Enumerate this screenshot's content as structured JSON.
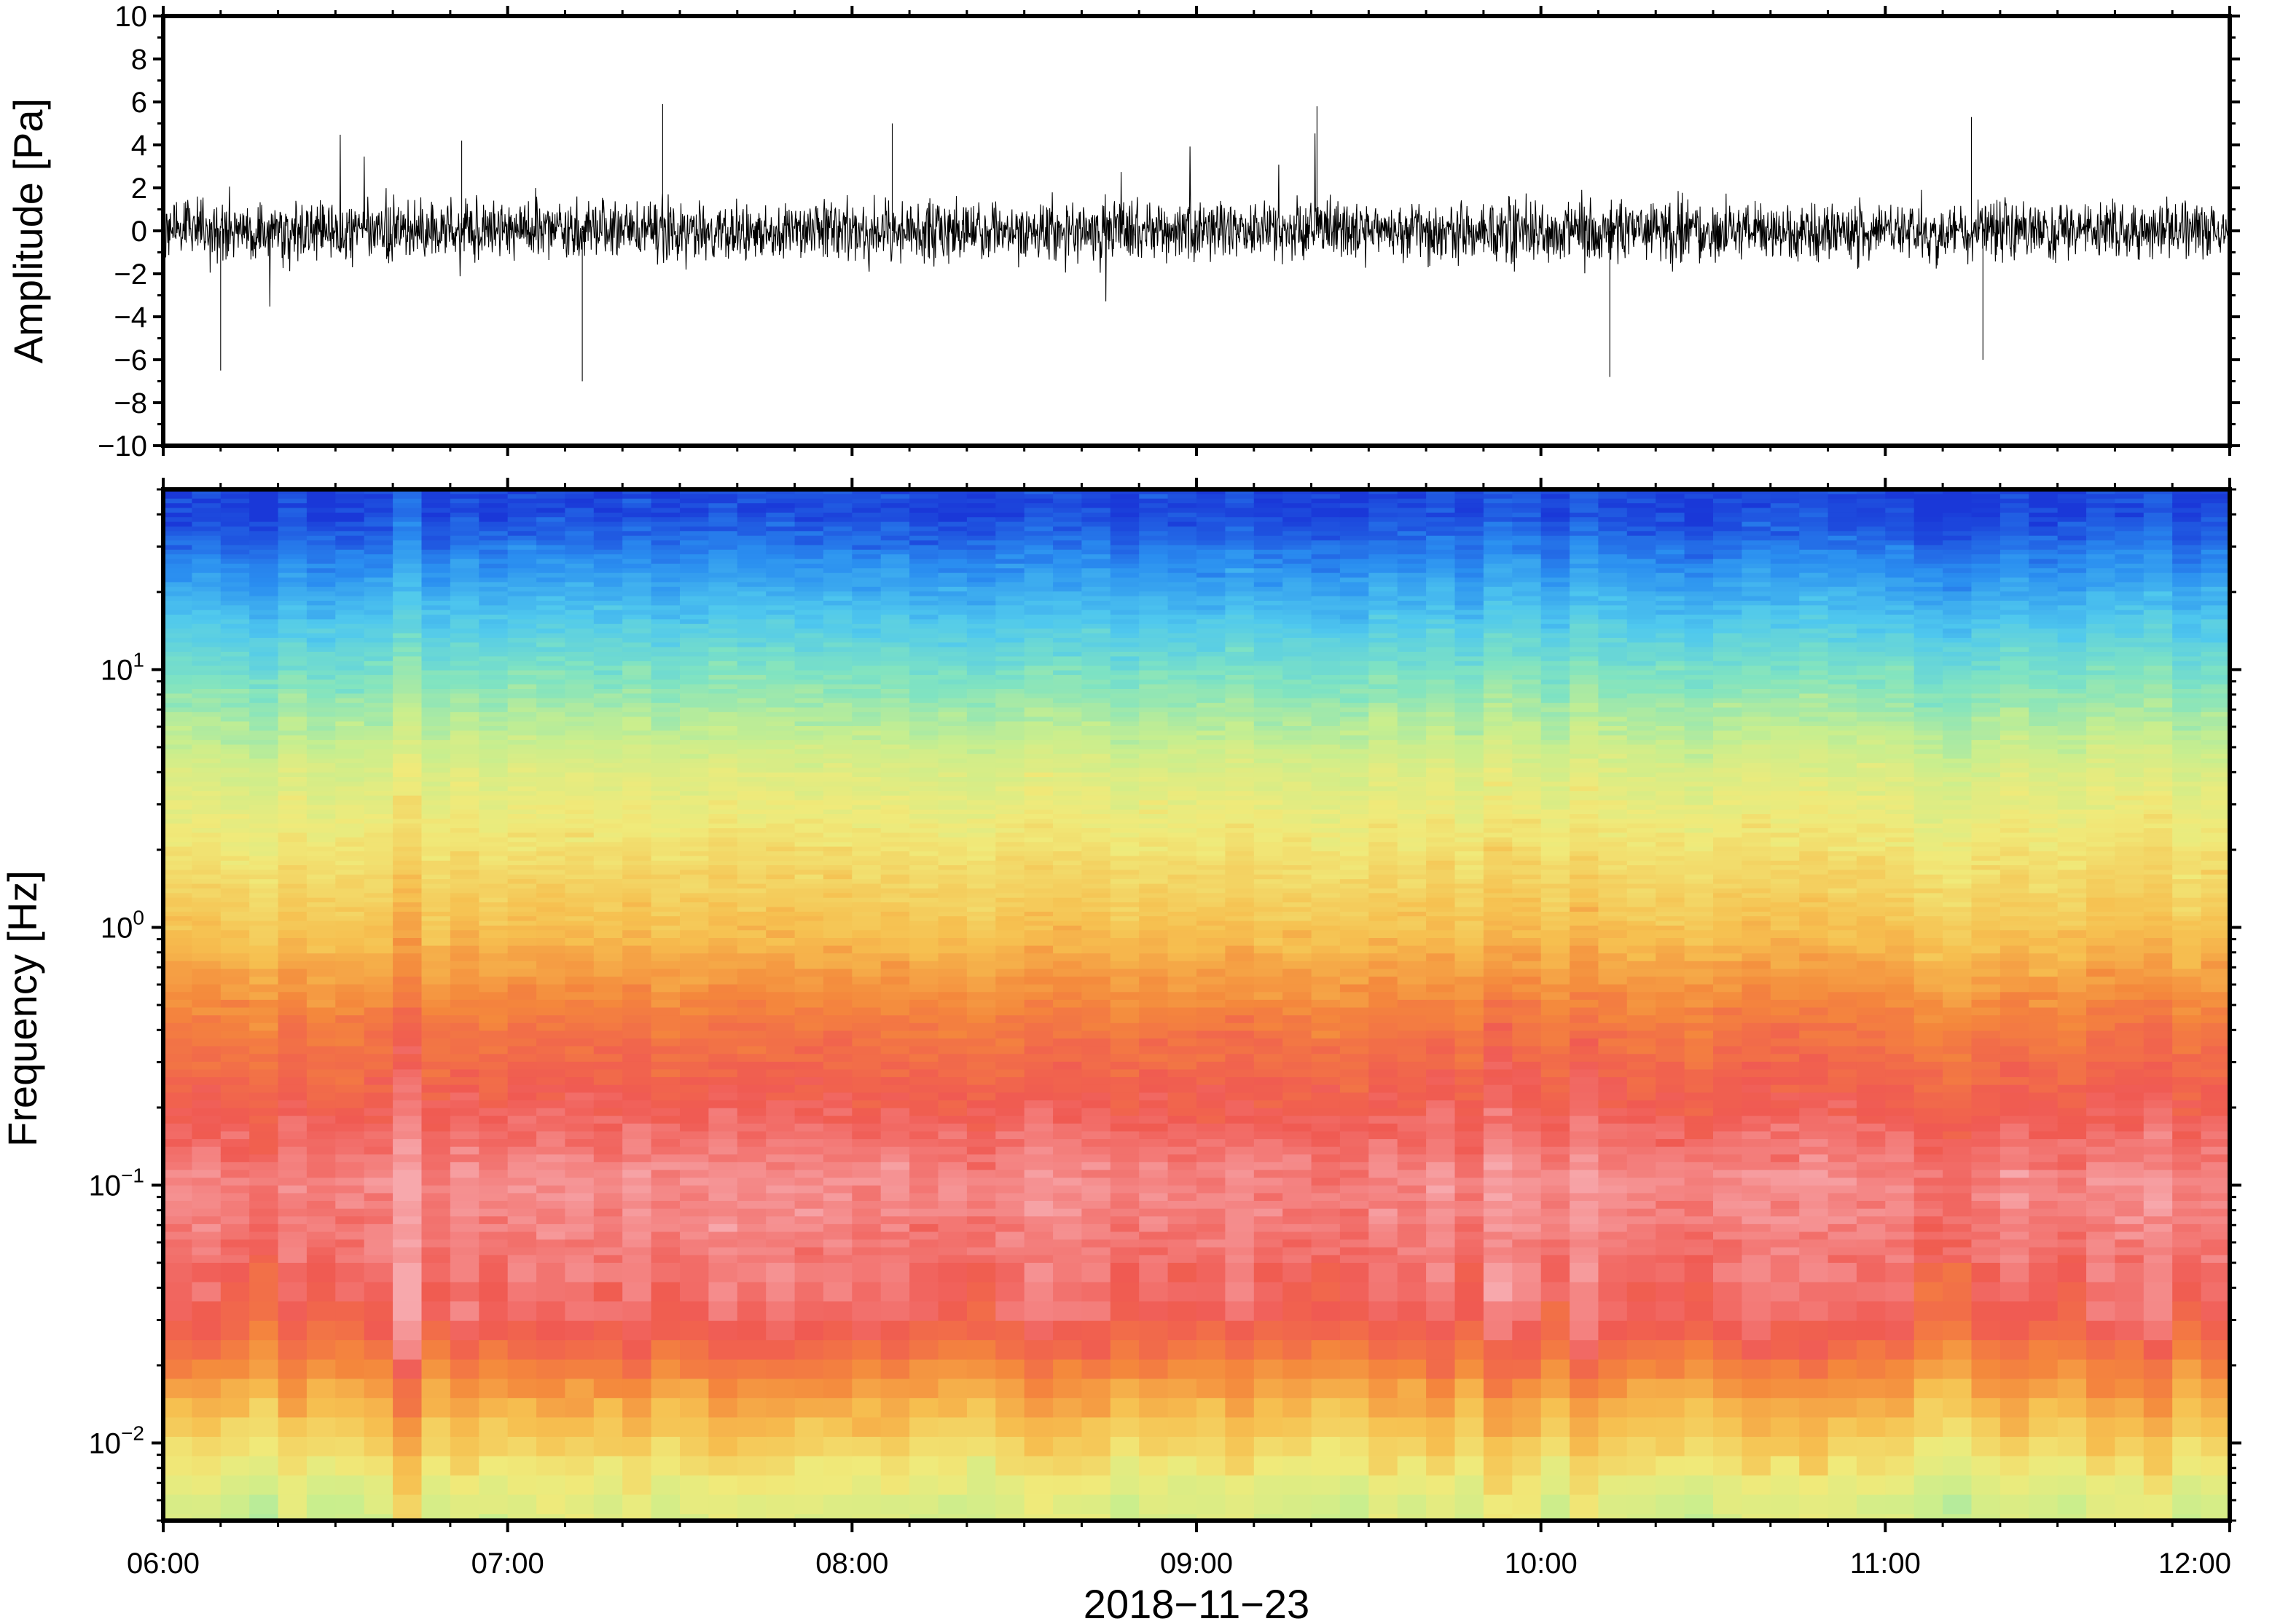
{
  "chart_data": [
    {
      "type": "line",
      "ylabel": "Amplitude [Pa]",
      "ylim": [
        -10,
        10
      ],
      "yticks": [
        10,
        8,
        6,
        4,
        2,
        0,
        -2,
        -4,
        -6,
        -8,
        -10
      ],
      "ytick_labels": [
        "10",
        "8",
        "6",
        "4",
        "2",
        "0",
        "−2",
        "−4",
        "−6",
        "−8",
        "−10"
      ],
      "xlim": [
        "2018-11-23 06:00",
        "2018-11-23 12:00"
      ],
      "color": "#000000",
      "waveform_summary": {
        "typical_range": [
          -2.5,
          2.5
        ],
        "peaks": [
          {
            "time": "06:10",
            "value": -6.5
          },
          {
            "time": "06:52",
            "value": 4.2
          },
          {
            "time": "07:13",
            "value": -7.0
          },
          {
            "time": "07:27",
            "value": 5.9
          },
          {
            "time": "08:07",
            "value": 5.0
          },
          {
            "time": "09:21",
            "value": 5.8
          },
          {
            "time": "10:12",
            "value": -6.8
          },
          {
            "time": "11:15",
            "value": 5.3
          },
          {
            "time": "11:17",
            "value": -6.0
          }
        ]
      }
    },
    {
      "type": "heatmap",
      "ylabel": "Frequency [Hz]",
      "yscale": "log",
      "ylim": [
        0.005,
        50
      ],
      "yticks": [
        10,
        1,
        0.1,
        0.01
      ],
      "ytick_labels": [
        {
          "base": "10",
          "exp": "1"
        },
        {
          "base": "10",
          "exp": "0"
        },
        {
          "base": "10",
          "exp": "−1"
        },
        {
          "base": "10",
          "exp": "−2"
        }
      ],
      "xlabel": "2018−11−23",
      "xticks": [
        "06:00",
        "07:00",
        "08:00",
        "09:00",
        "10:00",
        "11:00",
        "12:00"
      ],
      "colormap": [
        "#1a38d8",
        "#2a8ef0",
        "#4fc8ee",
        "#7fe3c2",
        "#c8ee8e",
        "#f0ea7a",
        "#f6c050",
        "#f4883c",
        "#f05a52",
        "#f7a8ac"
      ],
      "power_profile": [
        {
          "freq": 40,
          "level": 0.02
        },
        {
          "freq": 25,
          "level": 0.12
        },
        {
          "freq": 10,
          "level": 0.32
        },
        {
          "freq": 4,
          "level": 0.5
        },
        {
          "freq": 1,
          "level": 0.66
        },
        {
          "freq": 0.4,
          "level": 0.82
        },
        {
          "freq": 0.1,
          "level": 0.96
        },
        {
          "freq": 0.03,
          "level": 0.9
        },
        {
          "freq": 0.015,
          "level": 0.72
        },
        {
          "freq": 0.006,
          "level": 0.5
        }
      ]
    }
  ]
}
